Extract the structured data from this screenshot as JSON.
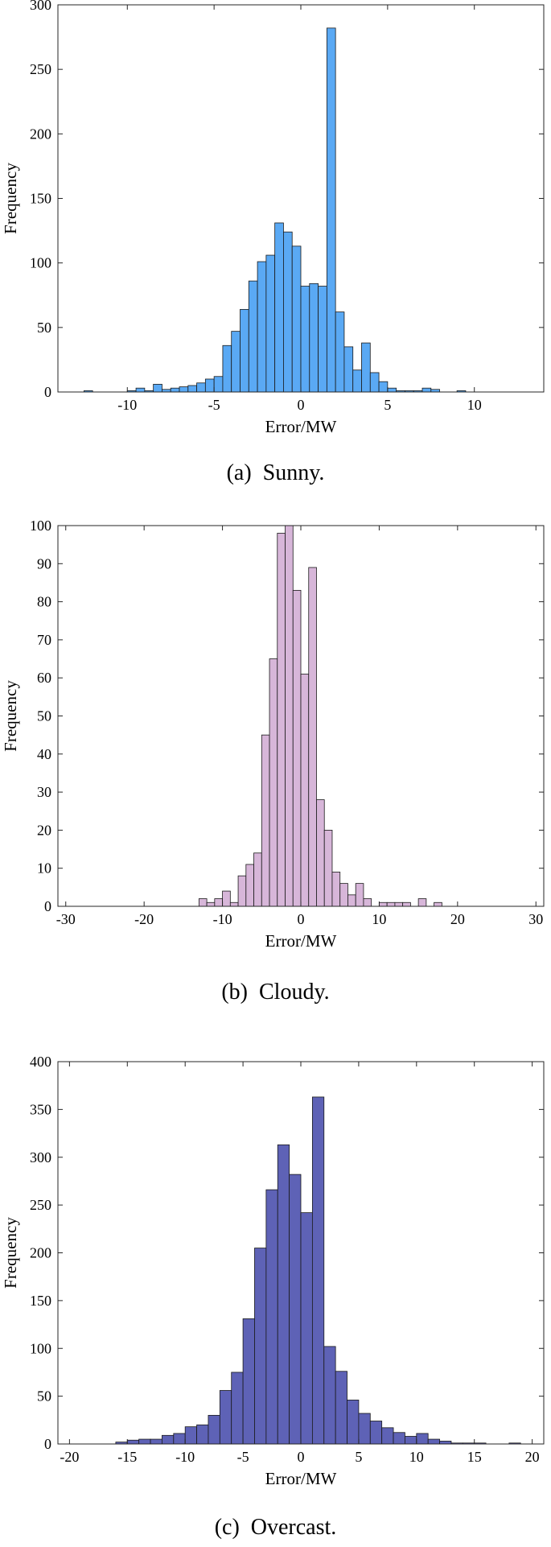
{
  "colors": {
    "sunny": "#5aa9f4",
    "cloudy": "#d7b6d9",
    "overcast": "#5e62b6",
    "edge": "#1a1a1a"
  },
  "captions": [
    {
      "tag": "(a)",
      "text": "Sunny."
    },
    {
      "tag": "(b)",
      "text": "Cloudy."
    },
    {
      "tag": "(c)",
      "text": "Overcast."
    }
  ],
  "chart_data": [
    {
      "type": "bar",
      "histogram": true,
      "xlabel": "Error/MW",
      "ylabel": "Frequency",
      "xlim": [
        -14,
        14
      ],
      "ylim": [
        0,
        300
      ],
      "xticks": [
        -10,
        -5,
        0,
        5,
        10
      ],
      "yticks": [
        0,
        50,
        100,
        150,
        200,
        250,
        300
      ],
      "bin_edges": [
        -12.5,
        -12,
        -11.5,
        -11,
        -10.5,
        -10,
        -9.5,
        -9,
        -8.5,
        -8,
        -7.5,
        -7,
        -6.5,
        -6,
        -5.5,
        -5,
        -4.5,
        -4,
        -3.5,
        -3,
        -2.5,
        -2,
        -1.5,
        -1,
        -0.5,
        0,
        0.5,
        1,
        1.5,
        2,
        2.5,
        3,
        3.5,
        4,
        4.5,
        5,
        5.5,
        6,
        6.5,
        7,
        7.5,
        8,
        8.5,
        9,
        9.5
      ],
      "values": [
        1,
        0,
        0,
        0,
        0,
        1,
        3,
        1,
        6,
        2,
        3,
        4,
        5,
        7,
        10,
        12,
        36,
        47,
        64,
        86,
        101,
        106,
        131,
        124,
        113,
        82,
        84,
        82,
        282,
        62,
        35,
        17,
        38,
        15,
        8,
        3,
        1,
        1,
        1,
        3,
        2,
        0,
        0,
        1
      ]
    },
    {
      "type": "bar",
      "histogram": true,
      "xlabel": "Error/MW",
      "ylabel": "Frequency",
      "xlim": [
        -31,
        31
      ],
      "ylim": [
        0,
        100
      ],
      "xticks": [
        -30,
        -20,
        -10,
        0,
        10,
        20,
        30
      ],
      "yticks": [
        0,
        10,
        20,
        30,
        40,
        50,
        60,
        70,
        80,
        90,
        100
      ],
      "bin_edges": [
        -13,
        -12,
        -11,
        -10,
        -9,
        -8,
        -7,
        -6,
        -5,
        -4,
        -3,
        -2,
        -1,
        0,
        1,
        2,
        3,
        4,
        5,
        6,
        7,
        8,
        9,
        10,
        11,
        12,
        13,
        14,
        15,
        16,
        17,
        18,
        19
      ],
      "values": [
        2,
        1,
        2,
        4,
        1,
        8,
        11,
        14,
        45,
        65,
        98,
        100,
        83,
        61,
        89,
        28,
        20,
        9,
        6,
        3,
        6,
        2,
        0,
        1,
        1,
        1,
        1,
        0,
        2,
        0,
        1,
        0
      ]
    },
    {
      "type": "bar",
      "histogram": true,
      "xlabel": "Error/MW",
      "ylabel": "Frequency",
      "xlim": [
        -21,
        21
      ],
      "ylim": [
        0,
        400
      ],
      "xticks": [
        -20,
        -15,
        -10,
        -5,
        0,
        5,
        10,
        15,
        20
      ],
      "yticks": [
        0,
        50,
        100,
        150,
        200,
        250,
        300,
        350,
        400
      ],
      "bin_edges": [
        -16,
        -15,
        -14,
        -13,
        -12,
        -11,
        -10,
        -9,
        -8,
        -7,
        -6,
        -5,
        -4,
        -3,
        -2,
        -1,
        0,
        1,
        2,
        3,
        4,
        5,
        6,
        7,
        8,
        9,
        10,
        11,
        12,
        13,
        14,
        15,
        16,
        17,
        18,
        19
      ],
      "values": [
        2,
        4,
        5,
        5,
        9,
        11,
        18,
        20,
        30,
        56,
        75,
        131,
        205,
        266,
        313,
        282,
        242,
        363,
        102,
        76,
        46,
        32,
        24,
        17,
        12,
        8,
        11,
        5,
        3,
        1,
        1,
        1,
        0,
        0,
        1
      ]
    }
  ]
}
